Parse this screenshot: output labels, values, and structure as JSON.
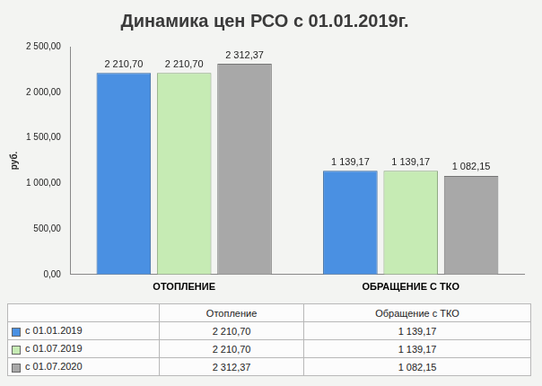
{
  "chart_data": {
    "type": "bar",
    "title": "Динамика цен РСО с 01.01.2019г.",
    "y_label": "руб.",
    "categories": [
      "ОТОПЛЕНИЕ",
      "ОБРАЩЕНИЕ С ТКО"
    ],
    "series": [
      {
        "name": "с 01.01.2019",
        "color": "#4a90e2",
        "values": [
          2210.7,
          1139.17
        ],
        "value_labels": [
          "2 210,70",
          "1 139,17"
        ]
      },
      {
        "name": "с 01.07.2019",
        "color": "#c6ebb4",
        "values": [
          2210.7,
          1139.17
        ],
        "value_labels": [
          "2 210,70",
          "1 139,17"
        ]
      },
      {
        "name": "с 01.07.2020",
        "color": "#a8a8a8",
        "values": [
          2312.37,
          1082.15
        ],
        "value_labels": [
          "2 312,37",
          "1 082,15"
        ]
      }
    ],
    "ylim": [
      0,
      2500
    ],
    "yticks": [
      {
        "value": 0,
        "label": "0,00"
      },
      {
        "value": 500,
        "label": "500,00"
      },
      {
        "value": 1000,
        "label": "1 000,00"
      },
      {
        "value": 1500,
        "label": "1 500,00"
      },
      {
        "value": 2000,
        "label": "2 000,00"
      },
      {
        "value": 2500,
        "label": "2 500,00"
      }
    ],
    "grid": false,
    "data_labels": true
  },
  "data_table": {
    "columns": [
      "Отопление",
      "Обращение с ТКО"
    ]
  }
}
